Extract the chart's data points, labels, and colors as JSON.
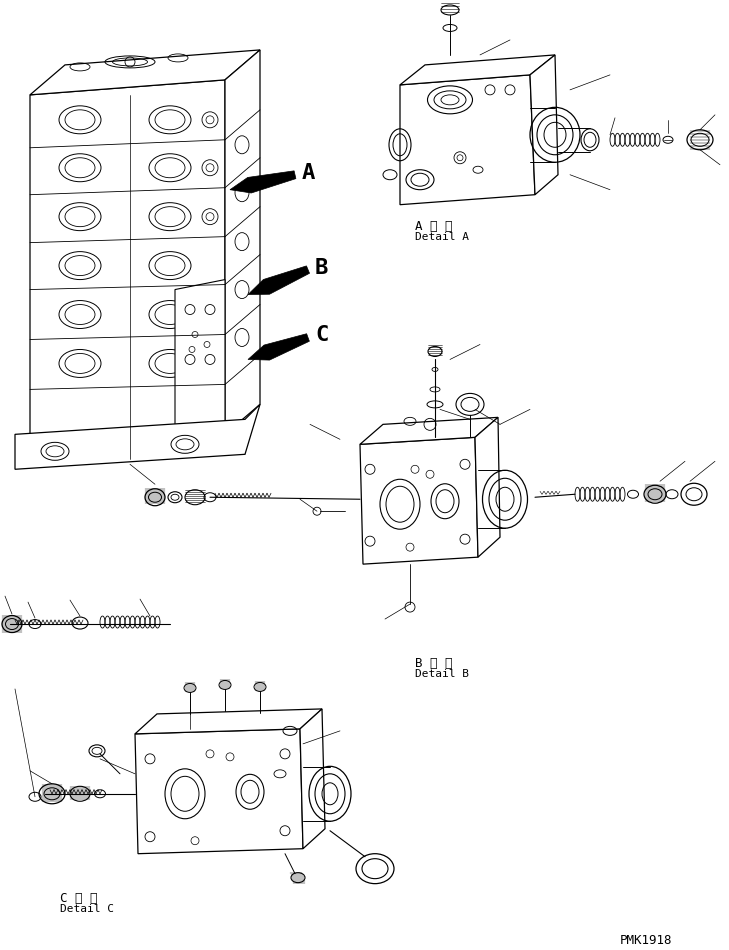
{
  "background_color": "#ffffff",
  "line_color": "#000000",
  "figure_width": 7.29,
  "figure_height": 9.5,
  "dpi": 100,
  "watermark": "PMK1918",
  "labels": {
    "A_detail_jp": "A 詳 細",
    "A_detail_en": "Detail A",
    "B_detail_jp": "B 詳 細",
    "B_detail_en": "Detail B",
    "C_detail_jp": "C 詳 細",
    "C_detail_en": "Detail C",
    "label_A": "A",
    "label_B": "B",
    "label_C": "C"
  }
}
